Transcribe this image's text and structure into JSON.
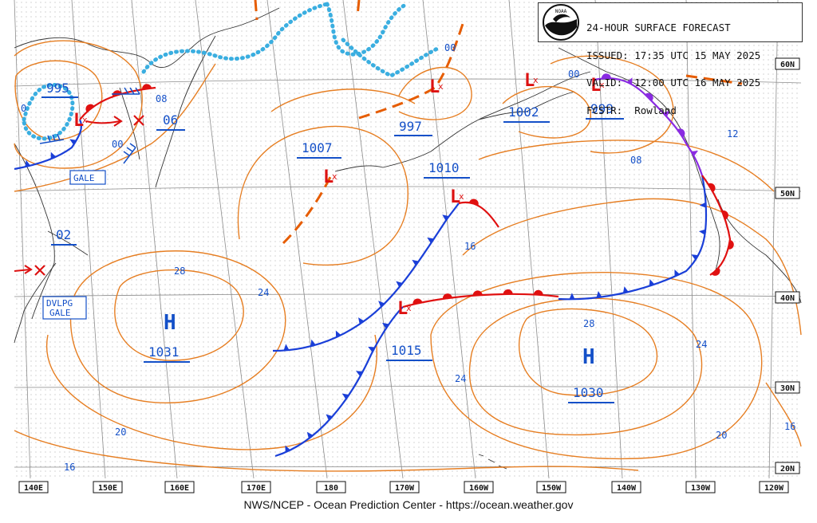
{
  "header": {
    "title": "24-HOUR SURFACE FORECAST",
    "issued": "ISSUED: 17:35 UTC 15 MAY 2025",
    "valid": "VALID:  12:00 UTC 16 MAY 2025",
    "forecaster": "FCSTR:  Rowland",
    "logo_text": "NOAA"
  },
  "footer": "NWS/NCEP - Ocean Prediction Center - https://ocean.weather.gov",
  "colors": {
    "isobar": "#e67e22",
    "cold_front": "#1a3fd8",
    "warm_front": "#e01010",
    "occluded": "#8a2be2",
    "low_symbol": "#dd1111",
    "high_symbol": "#1450c8",
    "ice_edge": "#3aaee0",
    "grid": "#8c8c8c",
    "label_blue": "#1450c8"
  },
  "longitude_labels": [
    "140E",
    "150E",
    "160E",
    "170E",
    "180",
    "170W",
    "160W",
    "150W",
    "140W",
    "130W",
    "120W"
  ],
  "latitude_labels": [
    "60N",
    "50N",
    "40N",
    "30N",
    "20N"
  ],
  "pressure_centers": [
    {
      "type": "L",
      "value": "995"
    },
    {
      "type": "L",
      "value": "1007"
    },
    {
      "type": "L",
      "value": "997"
    },
    {
      "type": "L",
      "value": "1002"
    },
    {
      "type": "L",
      "value": "999"
    },
    {
      "type": "L",
      "value": "1010"
    },
    {
      "type": "L",
      "value": "1015"
    },
    {
      "type": "H",
      "value": "1031"
    },
    {
      "type": "H",
      "value": "1030"
    },
    {
      "type": "L",
      "value": "02"
    },
    {
      "type": "L",
      "value": "06"
    }
  ],
  "isobar_labels": [
    "0",
    "08",
    "00",
    "28",
    "24",
    "16",
    "20",
    "16",
    "28",
    "24",
    "24",
    "20",
    "16",
    "08",
    "12",
    "00",
    "00"
  ],
  "warnings": [
    {
      "text": "GALE"
    },
    {
      "text": "DVLPG\nGALE"
    }
  ]
}
